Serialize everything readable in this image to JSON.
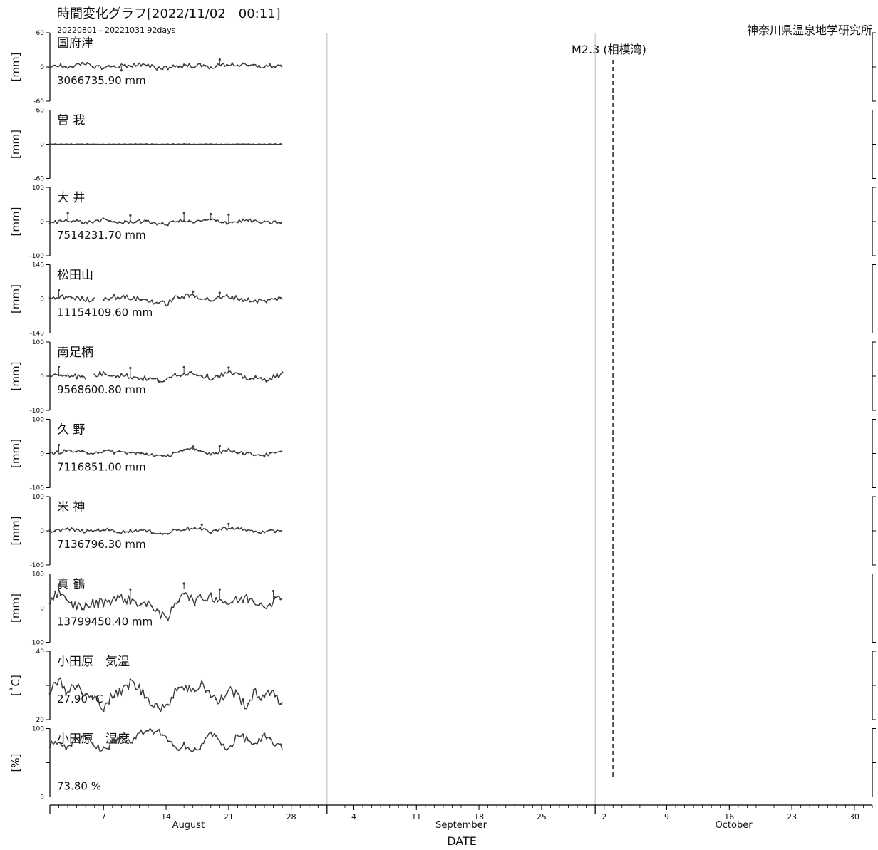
{
  "header": {
    "title": "時間変化グラフ[2022/11/02　00:11]",
    "period": "20220801 - 20221031 92days",
    "institute": "神奈川県温泉地学研究所"
  },
  "earthquake": {
    "label": "M2.3 (相模湾)",
    "date_day": 63
  },
  "colors": {
    "data": "#3a3a3a",
    "axis": "#000000",
    "divider": "#b8b8b8",
    "quake": "#444444"
  },
  "chart_data": {
    "type": "line",
    "x_axis": {
      "title": "DATE",
      "start_date": "2022-08-01",
      "span_days": 92,
      "data_end_day": 26,
      "months": [
        {
          "label": "August",
          "start_day": 0
        },
        {
          "label": "September",
          "start_day": 31
        },
        {
          "label": "October",
          "start_day": 61
        }
      ],
      "ticks": [
        {
          "day": 6,
          "label": "7"
        },
        {
          "day": 13,
          "label": "14"
        },
        {
          "day": 20,
          "label": "21"
        },
        {
          "day": 27,
          "label": "28"
        },
        {
          "day": 34,
          "label": "4"
        },
        {
          "day": 41,
          "label": "11"
        },
        {
          "day": 48,
          "label": "18"
        },
        {
          "day": 55,
          "label": "25"
        },
        {
          "day": 62,
          "label": "2"
        },
        {
          "day": 69,
          "label": "9"
        },
        {
          "day": 76,
          "label": "16"
        },
        {
          "day": 83,
          "label": "23"
        },
        {
          "day": 90,
          "label": "30"
        }
      ]
    },
    "panels": [
      {
        "name": "国府津",
        "unit": "[mm]",
        "ylim": [
          -60,
          60
        ],
        "yticks": [
          "60",
          "0",
          "-60"
        ],
        "value_label": "3066735.90 mm",
        "keypoints": [
          [
            0,
            3
          ],
          [
            2,
            1
          ],
          [
            4,
            4
          ],
          [
            6,
            -1
          ],
          [
            8,
            2
          ],
          [
            10,
            4
          ],
          [
            12,
            -2
          ],
          [
            14,
            1
          ],
          [
            16,
            3
          ],
          [
            18,
            0
          ],
          [
            20,
            5
          ],
          [
            22,
            2
          ],
          [
            24,
            1
          ],
          [
            26,
            2
          ]
        ],
        "noise": 4,
        "spikes": [
          [
            19,
            13
          ],
          [
            8,
            -6
          ]
        ],
        "gaps": []
      },
      {
        "name": "曽 我",
        "unit": "[mm]",
        "ylim": [
          -60,
          60
        ],
        "yticks": [
          "60",
          "0",
          "-60"
        ],
        "value_label": "",
        "keypoints": [
          [
            0,
            0
          ],
          [
            26,
            0
          ]
        ],
        "noise": 0.3,
        "spikes": [],
        "gaps": []
      },
      {
        "name": "大 井",
        "unit": "[mm]",
        "ylim": [
          -100,
          100
        ],
        "yticks": [
          "100",
          "0",
          "-100"
        ],
        "value_label": "7514231.70 mm",
        "keypoints": [
          [
            0,
            -5
          ],
          [
            2,
            5
          ],
          [
            4,
            -3
          ],
          [
            6,
            4
          ],
          [
            8,
            -4
          ],
          [
            10,
            2
          ],
          [
            12,
            -5
          ],
          [
            13,
            -10
          ],
          [
            14,
            3
          ],
          [
            16,
            -2
          ],
          [
            18,
            5
          ],
          [
            20,
            -3
          ],
          [
            22,
            4
          ],
          [
            24,
            -4
          ],
          [
            26,
            -2
          ]
        ],
        "noise": 5,
        "spikes": [
          [
            2,
            25
          ],
          [
            9,
            18
          ],
          [
            15,
            24
          ],
          [
            18,
            22
          ],
          [
            20,
            20
          ]
        ],
        "gaps": []
      },
      {
        "name": "松田山",
        "unit": "[mm]",
        "ylim": [
          -140,
          140
        ],
        "yticks": [
          "140",
          "0",
          "-140"
        ],
        "value_label": "11154109.60 mm",
        "keypoints": [
          [
            0,
            0
          ],
          [
            2,
            10
          ],
          [
            4,
            -5
          ],
          [
            6,
            5
          ],
          [
            8,
            8
          ],
          [
            10,
            0
          ],
          [
            12,
            -15
          ],
          [
            13,
            -20
          ],
          [
            14,
            5
          ],
          [
            16,
            15
          ],
          [
            18,
            -5
          ],
          [
            20,
            10
          ],
          [
            22,
            -5
          ],
          [
            24,
            -10
          ],
          [
            26,
            5
          ]
        ],
        "noise": 10,
        "spikes": [
          [
            1,
            35
          ],
          [
            16,
            30
          ],
          [
            19,
            25
          ]
        ],
        "gaps": [
          [
            5,
            6
          ]
        ]
      },
      {
        "name": "南足柄",
        "unit": "[mm]",
        "ylim": [
          -100,
          100
        ],
        "yticks": [
          "100",
          "0",
          "-100"
        ],
        "value_label": "9568600.80 mm",
        "keypoints": [
          [
            0,
            0
          ],
          [
            2,
            5
          ],
          [
            4,
            -5
          ],
          [
            6,
            8
          ],
          [
            8,
            2
          ],
          [
            10,
            -5
          ],
          [
            12,
            -10
          ],
          [
            13,
            -15
          ],
          [
            14,
            5
          ],
          [
            16,
            10
          ],
          [
            18,
            -5
          ],
          [
            20,
            10
          ],
          [
            22,
            -5
          ],
          [
            24,
            -10
          ],
          [
            26,
            5
          ]
        ],
        "noise": 7,
        "spikes": [
          [
            1,
            28
          ],
          [
            9,
            24
          ],
          [
            15,
            26
          ],
          [
            20,
            25
          ]
        ],
        "gaps": [
          [
            4,
            5
          ]
        ]
      },
      {
        "name": "久 野",
        "unit": "[mm]",
        "ylim": [
          -100,
          100
        ],
        "yticks": [
          "100",
          "0",
          "-100"
        ],
        "value_label": "7116851.00 mm",
        "keypoints": [
          [
            0,
            0
          ],
          [
            2,
            8
          ],
          [
            4,
            2
          ],
          [
            6,
            6
          ],
          [
            8,
            4
          ],
          [
            10,
            0
          ],
          [
            12,
            -5
          ],
          [
            13,
            -12
          ],
          [
            14,
            5
          ],
          [
            16,
            12
          ],
          [
            18,
            0
          ],
          [
            20,
            10
          ],
          [
            22,
            0
          ],
          [
            24,
            -5
          ],
          [
            26,
            5
          ]
        ],
        "noise": 5,
        "spikes": [
          [
            1,
            25
          ],
          [
            16,
            20
          ],
          [
            19,
            22
          ]
        ],
        "gaps": []
      },
      {
        "name": "米 神",
        "unit": "[mm]",
        "ylim": [
          -100,
          100
        ],
        "yticks": [
          "100",
          "0",
          "-100"
        ],
        "value_label": "7136796.30 mm",
        "keypoints": [
          [
            0,
            0
          ],
          [
            2,
            5
          ],
          [
            4,
            -2
          ],
          [
            6,
            4
          ],
          [
            8,
            -3
          ],
          [
            10,
            2
          ],
          [
            12,
            -5
          ],
          [
            13,
            -10
          ],
          [
            14,
            3
          ],
          [
            16,
            8
          ],
          [
            18,
            -2
          ],
          [
            20,
            10
          ],
          [
            22,
            2
          ],
          [
            24,
            -5
          ],
          [
            26,
            3
          ]
        ],
        "noise": 5,
        "spikes": [
          [
            17,
            18
          ],
          [
            20,
            20
          ]
        ],
        "gaps": []
      },
      {
        "name": "真 鶴",
        "unit": "[mm]",
        "ylim": [
          -100,
          100
        ],
        "yticks": [
          "100",
          "0",
          "-100"
        ],
        "value_label": "13799450.40 mm",
        "keypoints": [
          [
            0,
            20
          ],
          [
            1,
            50
          ],
          [
            2,
            10
          ],
          [
            4,
            5
          ],
          [
            6,
            20
          ],
          [
            8,
            30
          ],
          [
            10,
            15
          ],
          [
            12,
            0
          ],
          [
            13,
            -40
          ],
          [
            14,
            10
          ],
          [
            15,
            55
          ],
          [
            16,
            20
          ],
          [
            18,
            35
          ],
          [
            20,
            15
          ],
          [
            22,
            30
          ],
          [
            24,
            10
          ],
          [
            26,
            30
          ]
        ],
        "noise": 14,
        "spikes": [
          [
            1,
            70
          ],
          [
            9,
            55
          ],
          [
            15,
            72
          ],
          [
            19,
            55
          ],
          [
            25,
            50
          ]
        ],
        "gaps": []
      },
      {
        "name": "小田原　気温",
        "unit": "[˚C]",
        "ylim": [
          20,
          40
        ],
        "yticks": [
          "40",
          "",
          "20"
        ],
        "value_label": "27.90 ℃",
        "keypoints": [
          [
            0,
            29
          ],
          [
            1,
            32
          ],
          [
            2,
            28
          ],
          [
            3,
            30
          ],
          [
            4,
            27
          ],
          [
            5,
            26
          ],
          [
            6,
            24
          ],
          [
            7,
            27
          ],
          [
            8,
            28
          ],
          [
            9,
            31
          ],
          [
            10,
            29
          ],
          [
            11,
            26
          ],
          [
            12,
            24
          ],
          [
            13,
            23
          ],
          [
            14,
            29
          ],
          [
            15,
            30
          ],
          [
            16,
            28
          ],
          [
            17,
            31
          ],
          [
            18,
            27
          ],
          [
            19,
            25
          ],
          [
            20,
            29
          ],
          [
            21,
            27
          ],
          [
            22,
            24
          ],
          [
            23,
            28
          ],
          [
            24,
            26
          ],
          [
            25,
            29
          ],
          [
            26,
            24
          ]
        ],
        "noise": 1.5,
        "spikes": [],
        "gaps": []
      },
      {
        "name": "小田原　湿度",
        "unit": "[%]",
        "ylim": [
          0,
          100
        ],
        "yticks": [
          "100",
          "",
          "0"
        ],
        "value_label": "73.80 %",
        "keypoints": [
          [
            0,
            75
          ],
          [
            1,
            82
          ],
          [
            2,
            70
          ],
          [
            3,
            85
          ],
          [
            4,
            90
          ],
          [
            5,
            75
          ],
          [
            6,
            68
          ],
          [
            7,
            80
          ],
          [
            8,
            88
          ],
          [
            9,
            78
          ],
          [
            10,
            92
          ],
          [
            11,
            96
          ],
          [
            12,
            97
          ],
          [
            13,
            85
          ],
          [
            14,
            70
          ],
          [
            15,
            78
          ],
          [
            16,
            65
          ],
          [
            17,
            75
          ],
          [
            18,
            95
          ],
          [
            19,
            80
          ],
          [
            20,
            70
          ],
          [
            21,
            90
          ],
          [
            22,
            85
          ],
          [
            23,
            75
          ],
          [
            24,
            88
          ],
          [
            25,
            80
          ],
          [
            26,
            70
          ]
        ],
        "noise": 5,
        "spikes": [],
        "gaps": []
      }
    ]
  }
}
